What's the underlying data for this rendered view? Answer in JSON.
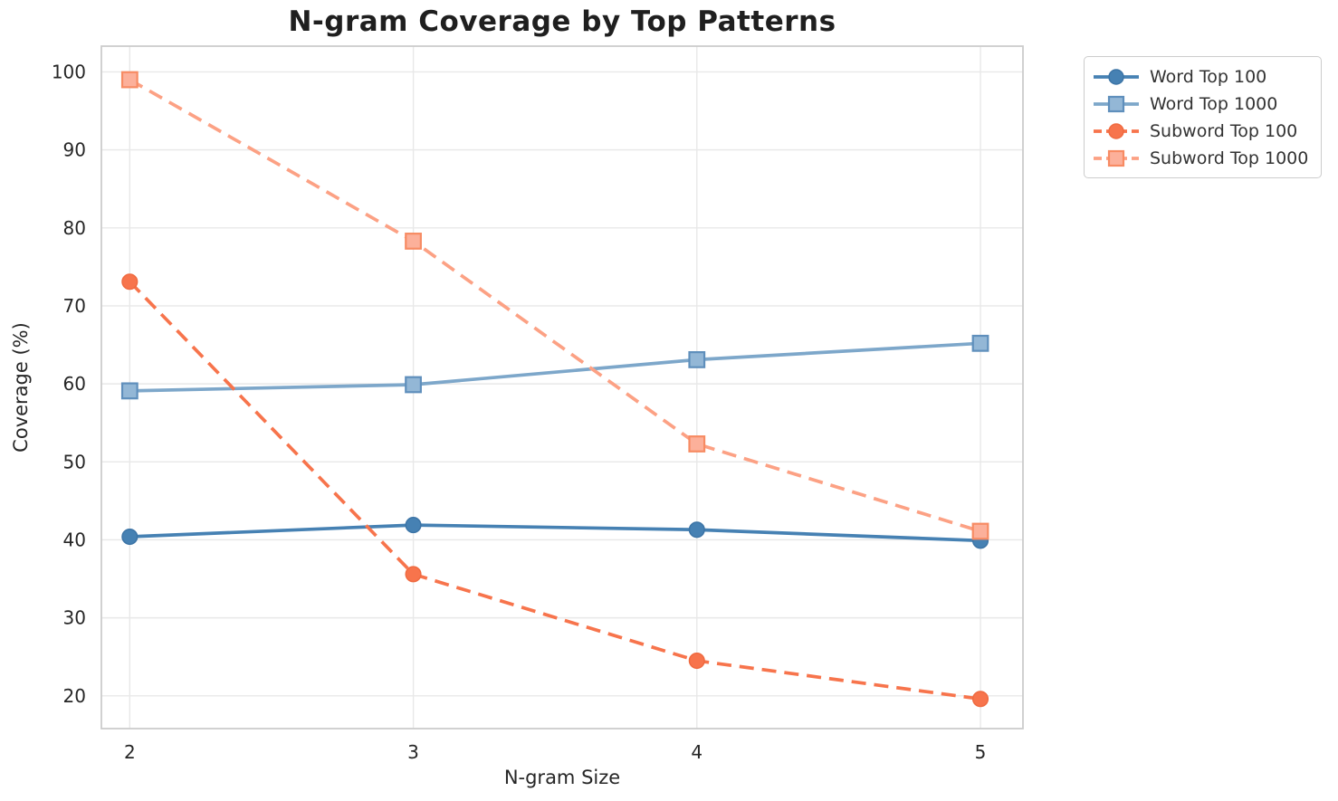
{
  "style": {
    "background": "#ffffff",
    "grid_color": "#e8e8e8",
    "spine_color": "#cccccc",
    "tick_text_color": "#262626",
    "title_color": "#1f1f1f",
    "legend_text_color": "#333333"
  },
  "chart_data": {
    "type": "line",
    "title": "N-gram Coverage by Top Patterns",
    "xlabel": "N-gram Size",
    "ylabel": "Coverage (%)",
    "x": [
      2,
      3,
      4,
      5
    ],
    "x_ticks": [
      "2",
      "3",
      "4",
      "5"
    ],
    "y_ticks": [
      20,
      30,
      40,
      50,
      60,
      70,
      80,
      90,
      100
    ],
    "xlim": [
      1.9,
      5.15
    ],
    "ylim": [
      15.8,
      103.3
    ],
    "grid": true,
    "legend_position": "outside-upper-right",
    "series": [
      {
        "name": "Word Top 100",
        "values": [
          40.4,
          41.9,
          41.3,
          39.9
        ],
        "color": "#4681b3",
        "linestyle": "solid",
        "marker": "circle",
        "marker_fill": "#4681b3",
        "marker_edge": "#3c74a6"
      },
      {
        "name": "Word Top 1000",
        "values": [
          59.1,
          59.9,
          63.1,
          65.2
        ],
        "color": "#7da7ca",
        "linestyle": "solid",
        "marker": "square",
        "marker_fill": "#93b7d6",
        "marker_edge": "#5f8fbc"
      },
      {
        "name": "Subword Top 100",
        "values": [
          73.1,
          35.6,
          24.5,
          19.6
        ],
        "color": "#f7744c",
        "linestyle": "dashed",
        "marker": "circle",
        "marker_fill": "#f7744c",
        "marker_edge": "#ef6a40"
      },
      {
        "name": "Subword Top 1000",
        "values": [
          99.0,
          78.3,
          52.3,
          41.1
        ],
        "color": "#fca184",
        "linestyle": "dashed",
        "marker": "square",
        "marker_fill": "#fcb09a",
        "marker_edge": "#f78b63"
      }
    ]
  }
}
